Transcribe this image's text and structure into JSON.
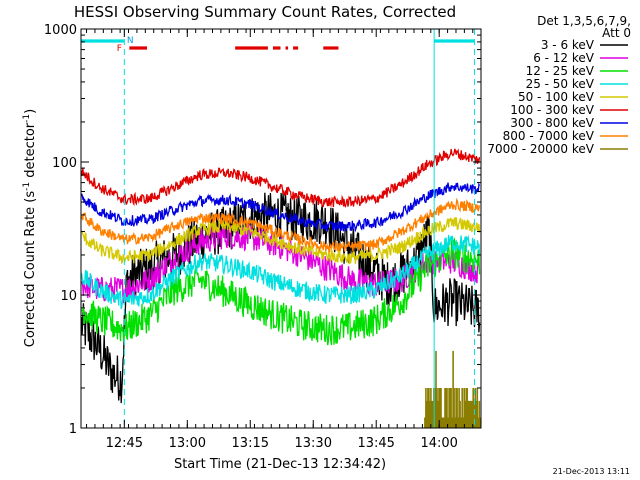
{
  "chart_data": {
    "type": "line",
    "title": "HESSI Observing Summary Count Rates, Corrected",
    "xlabel": "Start Time (21-Dec-13 12:34:42)",
    "ylabel_main": "Corrected Count Rate (s",
    "ylabel_sup1": "-1",
    "ylabel_mid": " detector",
    "ylabel_sup2": "-1",
    "ylabel_end": ")",
    "yscale": "log",
    "ylim": [
      1,
      1000
    ],
    "xlim": [
      12.578,
      14.166
    ],
    "x_ticks": [
      {
        "v": 12.75,
        "label": "12:45"
      },
      {
        "v": 13.0,
        "label": "13:00"
      },
      {
        "v": 13.25,
        "label": "13:15"
      },
      {
        "v": 13.5,
        "label": "13:30"
      },
      {
        "v": 13.75,
        "label": "13:45"
      },
      {
        "v": 14.0,
        "label": "14:00"
      }
    ],
    "y_ticks": [
      {
        "v": 1,
        "label": "1"
      },
      {
        "v": 10,
        "label": "10"
      },
      {
        "v": 100,
        "label": "100"
      },
      {
        "v": 1000,
        "label": "1000"
      }
    ],
    "legend": {
      "header1": "Det 1,3,5,6,7,9,",
      "header2": "Att 0"
    },
    "series": [
      {
        "name": "3 - 6 keV",
        "color": "#000000",
        "noise": 0.18,
        "points": [
          [
            12.58,
            6
          ],
          [
            12.65,
            4
          ],
          [
            12.7,
            2.6
          ],
          [
            12.74,
            2.3
          ],
          [
            12.76,
            13
          ],
          [
            12.85,
            16
          ],
          [
            12.95,
            20
          ],
          [
            13.05,
            27
          ],
          [
            13.15,
            31
          ],
          [
            13.25,
            38
          ],
          [
            13.35,
            40
          ],
          [
            13.45,
            37
          ],
          [
            13.55,
            36
          ],
          [
            13.6,
            28
          ],
          [
            13.7,
            18
          ],
          [
            13.8,
            12
          ],
          [
            13.9,
            17
          ],
          [
            13.96,
            30
          ],
          [
            13.98,
            8
          ],
          [
            14.05,
            9
          ],
          [
            14.16,
            7.5
          ]
        ]
      },
      {
        "name": "6 - 12 keV",
        "color": "#e000e0",
        "noise": 0.1,
        "points": [
          [
            12.58,
            12
          ],
          [
            12.65,
            11
          ],
          [
            12.75,
            11
          ],
          [
            12.85,
            13
          ],
          [
            12.95,
            19
          ],
          [
            13.05,
            25
          ],
          [
            13.15,
            28
          ],
          [
            13.25,
            27
          ],
          [
            13.35,
            24
          ],
          [
            13.45,
            20
          ],
          [
            13.55,
            16
          ],
          [
            13.65,
            13
          ],
          [
            13.75,
            12
          ],
          [
            13.85,
            13
          ],
          [
            13.95,
            18
          ],
          [
            14.05,
            18
          ],
          [
            14.16,
            15
          ]
        ]
      },
      {
        "name": "12 - 25 keV",
        "color": "#00e000",
        "noise": 0.12,
        "points": [
          [
            12.58,
            8
          ],
          [
            12.65,
            6.5
          ],
          [
            12.75,
            5.5
          ],
          [
            12.85,
            7
          ],
          [
            12.95,
            11
          ],
          [
            13.05,
            13
          ],
          [
            13.15,
            10.5
          ],
          [
            13.25,
            8.5
          ],
          [
            13.35,
            7
          ],
          [
            13.45,
            6
          ],
          [
            13.55,
            5.5
          ],
          [
            13.65,
            5.7
          ],
          [
            13.75,
            6.5
          ],
          [
            13.85,
            9
          ],
          [
            13.95,
            16
          ],
          [
            14.05,
            21
          ],
          [
            14.16,
            18
          ]
        ]
      },
      {
        "name": "25 - 50 keV",
        "color": "#00e0e0",
        "noise": 0.07,
        "points": [
          [
            12.58,
            14
          ],
          [
            12.65,
            11
          ],
          [
            12.75,
            9
          ],
          [
            12.85,
            10
          ],
          [
            12.95,
            14
          ],
          [
            13.05,
            18
          ],
          [
            13.15,
            17
          ],
          [
            13.25,
            15
          ],
          [
            13.35,
            12.5
          ],
          [
            13.45,
            11
          ],
          [
            13.55,
            10
          ],
          [
            13.65,
            10
          ],
          [
            13.75,
            11
          ],
          [
            13.85,
            14
          ],
          [
            13.95,
            20
          ],
          [
            14.05,
            25
          ],
          [
            14.16,
            23
          ]
        ]
      },
      {
        "name": "50 - 100 keV",
        "color": "#d4c800",
        "noise": 0.05,
        "points": [
          [
            12.58,
            28
          ],
          [
            12.65,
            22
          ],
          [
            12.75,
            19
          ],
          [
            12.85,
            20
          ],
          [
            12.95,
            25
          ],
          [
            13.05,
            31
          ],
          [
            13.15,
            33
          ],
          [
            13.25,
            30
          ],
          [
            13.35,
            26
          ],
          [
            13.45,
            22
          ],
          [
            13.55,
            20
          ],
          [
            13.65,
            19
          ],
          [
            13.75,
            20
          ],
          [
            13.85,
            23
          ],
          [
            13.95,
            30
          ],
          [
            14.05,
            35
          ],
          [
            14.16,
            32
          ]
        ]
      },
      {
        "name": "100 - 300 keV",
        "color": "#e00000",
        "noise": 0.04,
        "points": [
          [
            12.58,
            85
          ],
          [
            12.65,
            65
          ],
          [
            12.75,
            52
          ],
          [
            12.85,
            53
          ],
          [
            12.95,
            65
          ],
          [
            13.05,
            80
          ],
          [
            13.15,
            83
          ],
          [
            13.25,
            76
          ],
          [
            13.35,
            64
          ],
          [
            13.45,
            55
          ],
          [
            13.55,
            50
          ],
          [
            13.65,
            50
          ],
          [
            13.75,
            53
          ],
          [
            13.85,
            68
          ],
          [
            13.95,
            95
          ],
          [
            14.05,
            118
          ],
          [
            14.16,
            103
          ]
        ]
      },
      {
        "name": "300 - 800 keV",
        "color": "#0000e0",
        "noise": 0.04,
        "points": [
          [
            12.58,
            55
          ],
          [
            12.65,
            43
          ],
          [
            12.75,
            36
          ],
          [
            12.85,
            37
          ],
          [
            12.95,
            44
          ],
          [
            13.05,
            51
          ],
          [
            13.15,
            52
          ],
          [
            13.25,
            48
          ],
          [
            13.35,
            41
          ],
          [
            13.45,
            36
          ],
          [
            13.55,
            33
          ],
          [
            13.65,
            33
          ],
          [
            13.75,
            35
          ],
          [
            13.85,
            42
          ],
          [
            13.95,
            55
          ],
          [
            14.05,
            66
          ],
          [
            14.16,
            62
          ]
        ]
      },
      {
        "name": "800 - 7000 keV",
        "color": "#ff8000",
        "noise": 0.04,
        "points": [
          [
            12.58,
            40
          ],
          [
            12.65,
            31
          ],
          [
            12.75,
            26
          ],
          [
            12.85,
            27
          ],
          [
            12.95,
            33
          ],
          [
            13.05,
            38
          ],
          [
            13.15,
            38
          ],
          [
            13.25,
            35
          ],
          [
            13.35,
            30
          ],
          [
            13.45,
            26
          ],
          [
            13.55,
            23
          ],
          [
            13.65,
            23
          ],
          [
            13.75,
            24
          ],
          [
            13.85,
            30
          ],
          [
            13.95,
            39
          ],
          [
            14.05,
            48
          ],
          [
            14.16,
            45
          ]
        ]
      },
      {
        "name": "7000 - 20000 keV",
        "color": "#8b7d00",
        "noise": 0.0,
        "points": [
          [
            13.94,
            1
          ],
          [
            14.16,
            1
          ]
        ]
      }
    ],
    "night_intervals": [
      [
        12.58,
        12.75
      ],
      [
        13.98,
        14.14
      ]
    ],
    "night_color": "#00e0e0",
    "boundary_lines": [
      12.75,
      13.98,
      14.14
    ],
    "saa_bars": [
      [
        12.77,
        12.84
      ],
      [
        13.19,
        13.32
      ],
      [
        13.34,
        13.37
      ],
      [
        13.39,
        13.4
      ],
      [
        13.42,
        13.44
      ],
      [
        13.54,
        13.6
      ]
    ],
    "saa_color": "#e00000",
    "flag_f": "F",
    "flag_n": "N",
    "flag_f_color": "#e00000",
    "flag_n_color": "#00a0e0"
  },
  "footer_timestamp": "21-Dec-2013 13:11"
}
